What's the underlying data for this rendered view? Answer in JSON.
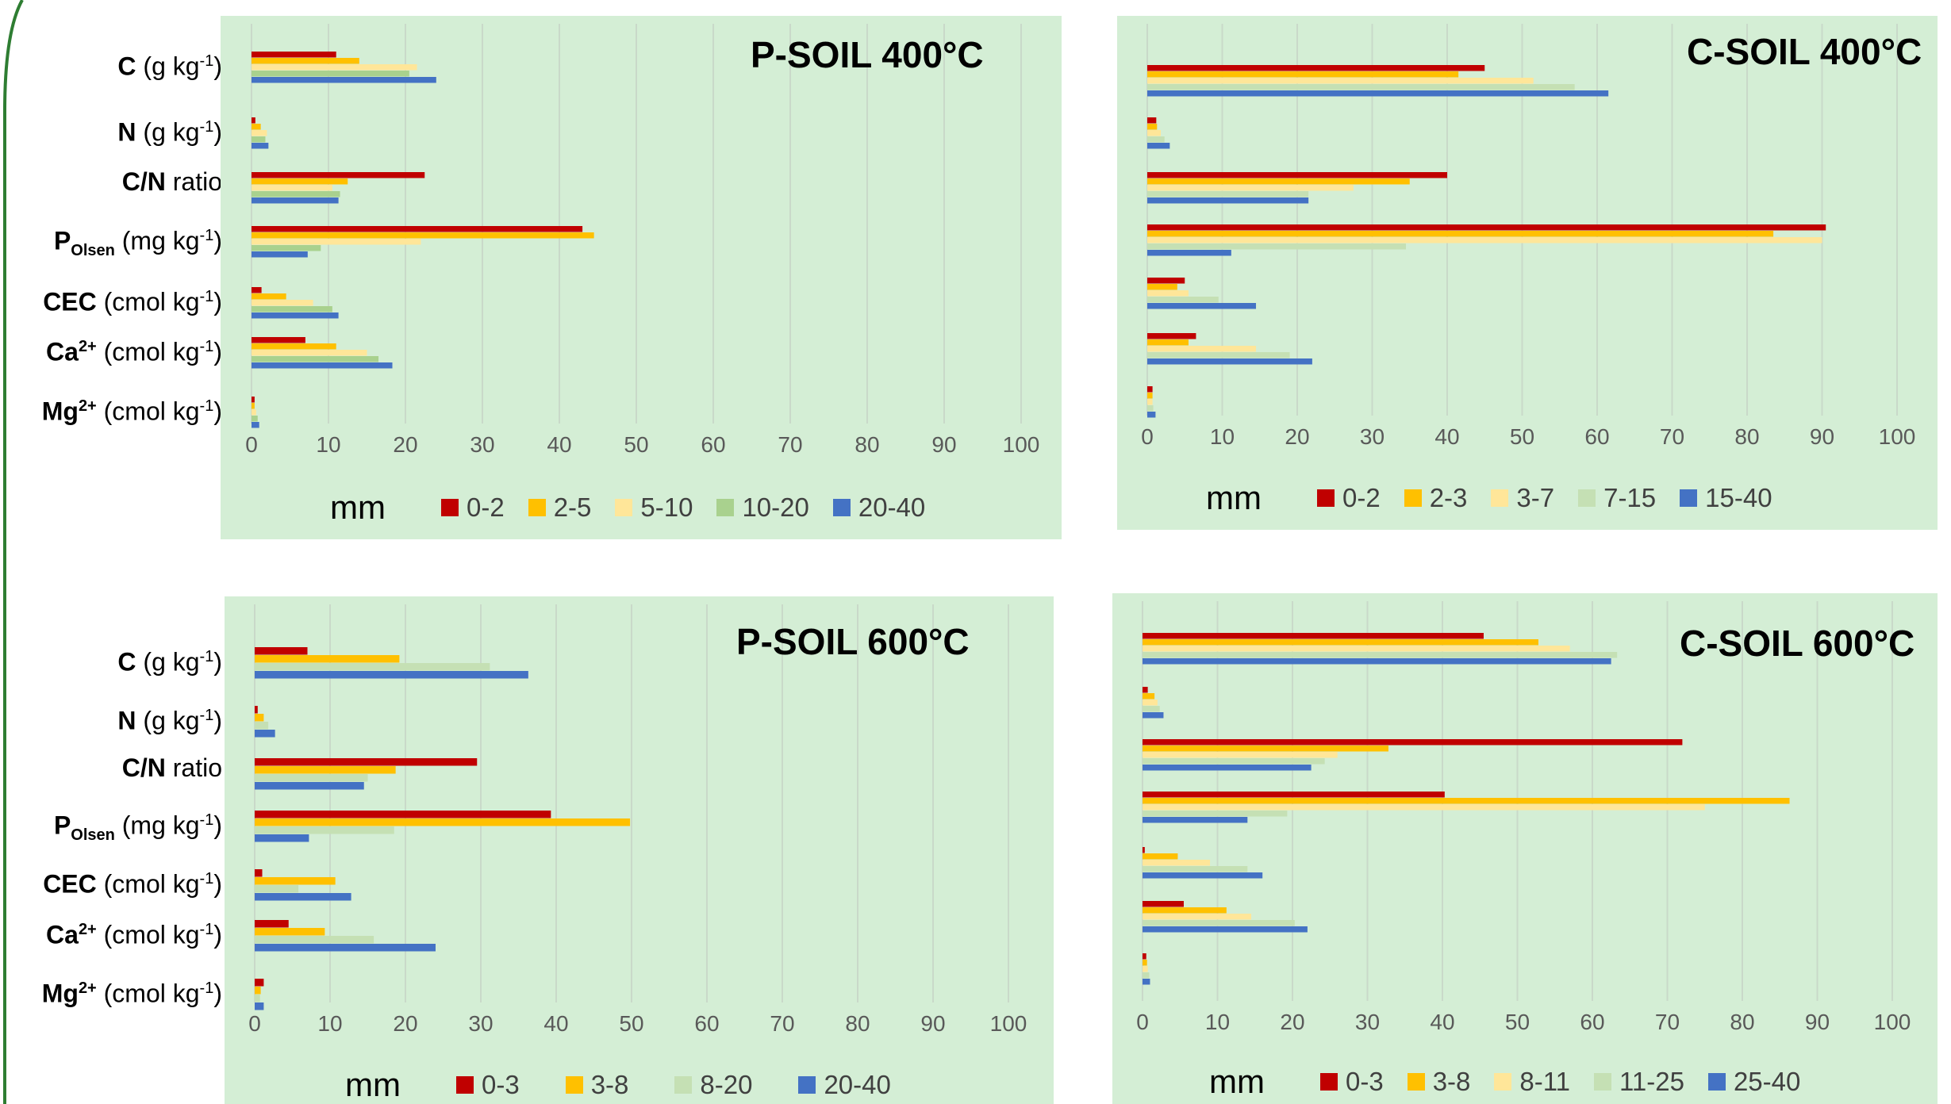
{
  "category_labels": [
    {
      "bold": "C",
      "sup": "",
      "sub": "",
      "rest": " (g kg",
      "exp": "-1",
      "end": ")"
    },
    {
      "bold": "N",
      "sup": "",
      "sub": "",
      "rest": " (g kg",
      "exp": "-1",
      "end": ")"
    },
    {
      "bold": "C/N",
      "sup": "",
      "sub": "",
      "rest": " ratio",
      "exp": "",
      "end": ""
    },
    {
      "bold": "P",
      "sup": "",
      "sub": "Olsen",
      "rest": " (mg kg",
      "exp": "-1",
      "end": ")"
    },
    {
      "bold": "CEC",
      "sup": "",
      "sub": "",
      "rest": " (cmol kg",
      "exp": "-1",
      "end": ")"
    },
    {
      "bold": "Ca",
      "sup": "2+",
      "sub": "",
      "rest": " (cmol kg",
      "exp": "-1",
      "end": ")"
    },
    {
      "bold": "Mg",
      "sup": "2+",
      "sub": "",
      "rest": " (cmol kg",
      "exp": "-1",
      "end": ")"
    }
  ],
  "series_colors": [
    "#c00000",
    "#ffc000",
    "#ffe699",
    "#c5e0b4",
    "#4472c4"
  ],
  "chart_data": [
    {
      "type": "bar",
      "orientation": "horizontal",
      "title": "P-SOIL 400°C",
      "xlabel": "mm",
      "xlim": [
        0,
        100
      ],
      "xticks": [
        0,
        10,
        20,
        30,
        40,
        50,
        60,
        70,
        80,
        90,
        100
      ],
      "grid": true,
      "legend_position": "bottom",
      "categories": [
        "C (g kg-1)",
        "N (g kg-1)",
        "C/N ratio",
        "POlsen (mg kg-1)",
        "CEC (cmol kg-1)",
        "Ca2+ (cmol kg-1)",
        "Mg2+ (cmol kg-1)"
      ],
      "series": [
        {
          "name": "0-2",
          "values": [
            11,
            0.5,
            22.5,
            43,
            1.3,
            7,
            0.4
          ]
        },
        {
          "name": "2-5",
          "values": [
            14,
            1.2,
            12.5,
            44.5,
            4.5,
            11,
            0.4
          ]
        },
        {
          "name": "5-10",
          "values": [
            21.5,
            2,
            10.5,
            22,
            8,
            15,
            0.6
          ]
        },
        {
          "name": "10-20",
          "values": [
            20.5,
            1.8,
            11.5,
            9,
            10.5,
            16.5,
            0.8
          ]
        },
        {
          "name": "20-40",
          "values": [
            24,
            2.2,
            11.3,
            7.3,
            11.3,
            18.3,
            1
          ]
        }
      ]
    },
    {
      "type": "bar",
      "orientation": "horizontal",
      "title": "C-SOIL 400°C",
      "xlabel": "mm",
      "xlim": [
        0,
        100
      ],
      "xticks": [
        0,
        10,
        20,
        30,
        40,
        50,
        60,
        70,
        80,
        90,
        100
      ],
      "grid": true,
      "legend_position": "bottom",
      "categories": [
        "C (g kg-1)",
        "N (g kg-1)",
        "C/N ratio",
        "POlsen (mg kg-1)",
        "CEC (cmol kg-1)",
        "Ca2+ (cmol kg-1)",
        "Mg2+ (cmol kg-1)"
      ],
      "series": [
        {
          "name": "0-2",
          "values": [
            45,
            1.2,
            40,
            90.5,
            5,
            6.5,
            0.7
          ]
        },
        {
          "name": "2-3",
          "values": [
            41.5,
            1.3,
            35,
            83.5,
            4,
            5.5,
            0.7
          ]
        },
        {
          "name": "3-7",
          "values": [
            51.5,
            1.8,
            27.5,
            90,
            5.5,
            14.5,
            0.7
          ]
        },
        {
          "name": "7-15",
          "values": [
            57,
            2.3,
            21.5,
            34.5,
            9.5,
            19,
            0.8
          ]
        },
        {
          "name": "15-40",
          "values": [
            61.5,
            3,
            21.5,
            11.2,
            14.5,
            22,
            1.1
          ]
        }
      ]
    },
    {
      "type": "bar",
      "orientation": "horizontal",
      "title": "P-SOIL 600°C",
      "xlabel": "mm",
      "xlim": [
        0,
        100
      ],
      "xticks": [
        0,
        10,
        20,
        30,
        40,
        50,
        60,
        70,
        80,
        90,
        100
      ],
      "grid": true,
      "legend_position": "bottom",
      "categories": [
        "C (g kg-1)",
        "N (g kg-1)",
        "C/N ratio",
        "POlsen (mg kg-1)",
        "CEC (cmol kg-1)",
        "Ca2+ (cmol kg-1)",
        "Mg2+ (cmol kg-1)"
      ],
      "series": [
        {
          "name": "0-3",
          "values": [
            7,
            0.4,
            29.5,
            39.3,
            1,
            4.5,
            1.2
          ]
        },
        {
          "name": "3-8",
          "values": [
            19.2,
            1.2,
            18.7,
            49.8,
            10.7,
            9.3,
            0.8
          ]
        },
        {
          "name": "8-20",
          "values": [
            31.2,
            1.8,
            15,
            18.5,
            5.8,
            15.8,
            0.7
          ]
        },
        {
          "name": "20-40",
          "values": [
            36.3,
            2.7,
            14.5,
            7.2,
            12.8,
            24,
            1.2
          ]
        }
      ]
    },
    {
      "type": "bar",
      "orientation": "horizontal",
      "title": "C-SOIL 600°C",
      "xlabel": "mm",
      "xlim": [
        0,
        100
      ],
      "xticks": [
        0,
        10,
        20,
        30,
        40,
        50,
        60,
        70,
        80,
        90,
        100
      ],
      "grid": true,
      "legend_position": "bottom",
      "categories": [
        "C (g kg-1)",
        "N (g kg-1)",
        "C/N ratio",
        "POlsen (mg kg-1)",
        "CEC (cmol kg-1)",
        "Ca2+ (cmol kg-1)",
        "Mg2+ (cmol kg-1)"
      ],
      "series": [
        {
          "name": "0-3",
          "values": [
            45.5,
            0.7,
            72,
            40.3,
            0.3,
            5.5,
            0.5
          ]
        },
        {
          "name": "3-8",
          "values": [
            52.8,
            1.6,
            32.8,
            86.3,
            4.7,
            11.2,
            0.6
          ]
        },
        {
          "name": "8-11",
          "values": [
            57,
            2,
            26,
            75,
            9,
            14.5,
            0.7
          ]
        },
        {
          "name": "11-25",
          "values": [
            63.3,
            2.3,
            24.3,
            19.3,
            14,
            20.3,
            0.9
          ]
        },
        {
          "name": "25-40",
          "values": [
            62.5,
            2.8,
            22.5,
            14,
            16,
            22,
            1
          ]
        }
      ]
    }
  ]
}
